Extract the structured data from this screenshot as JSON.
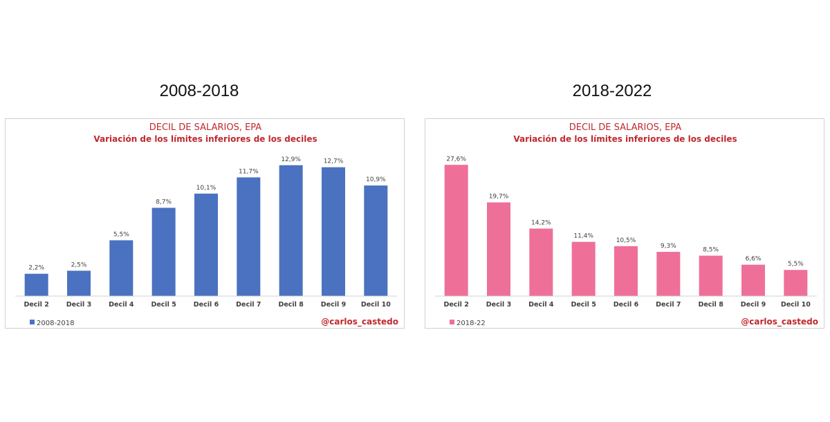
{
  "headings": {
    "left": "2008-2018",
    "right": "2018-2022"
  },
  "chart_data": [
    {
      "type": "bar",
      "title": "DECIL DE SALARIOS, EPA",
      "subtitle": "Variación de los límites inferiores de los deciles",
      "categories": [
        "Decil 2",
        "Decil 3",
        "Decil 4",
        "Decil 5",
        "Decil 6",
        "Decil 7",
        "Decil 8",
        "Decil 9",
        "Decil 10"
      ],
      "series": [
        {
          "name": "2008-2018",
          "values": [
            2.2,
            2.5,
            5.5,
            8.7,
            10.1,
            11.7,
            12.9,
            12.7,
            10.9
          ],
          "color": "#4a72c0"
        }
      ],
      "data_labels": [
        "2,2%",
        "2,5%",
        "5,5%",
        "8,7%",
        "10,1%",
        "11,7%",
        "12,9%",
        "12,7%",
        "10,9%"
      ],
      "ylim": [
        0,
        13.5
      ],
      "grid": false,
      "legend_position": "bottom-left",
      "credit": "@carlos_castedo"
    },
    {
      "type": "bar",
      "title": "DECIL DE SALARIOS, EPA",
      "subtitle": "Variación de los límites inferiores de los deciles",
      "categories": [
        "Decil 2",
        "Decil 3",
        "Decil 4",
        "Decil 5",
        "Decil 6",
        "Decil 7",
        "Decil 8",
        "Decil 9",
        "Decil 10"
      ],
      "series": [
        {
          "name": "2018-22",
          "values": [
            27.6,
            19.7,
            14.2,
            11.4,
            10.5,
            9.3,
            8.5,
            6.6,
            5.5
          ],
          "color": "#ee7099"
        }
      ],
      "data_labels": [
        "27,6%",
        "19,7%",
        "14,2%",
        "11,4%",
        "10,5%",
        "9,3%",
        "8,5%",
        "6,6%",
        "5,5%"
      ],
      "ylim": [
        0,
        28.8
      ],
      "grid": false,
      "legend_position": "bottom-left",
      "credit": "@carlos_castedo"
    }
  ]
}
